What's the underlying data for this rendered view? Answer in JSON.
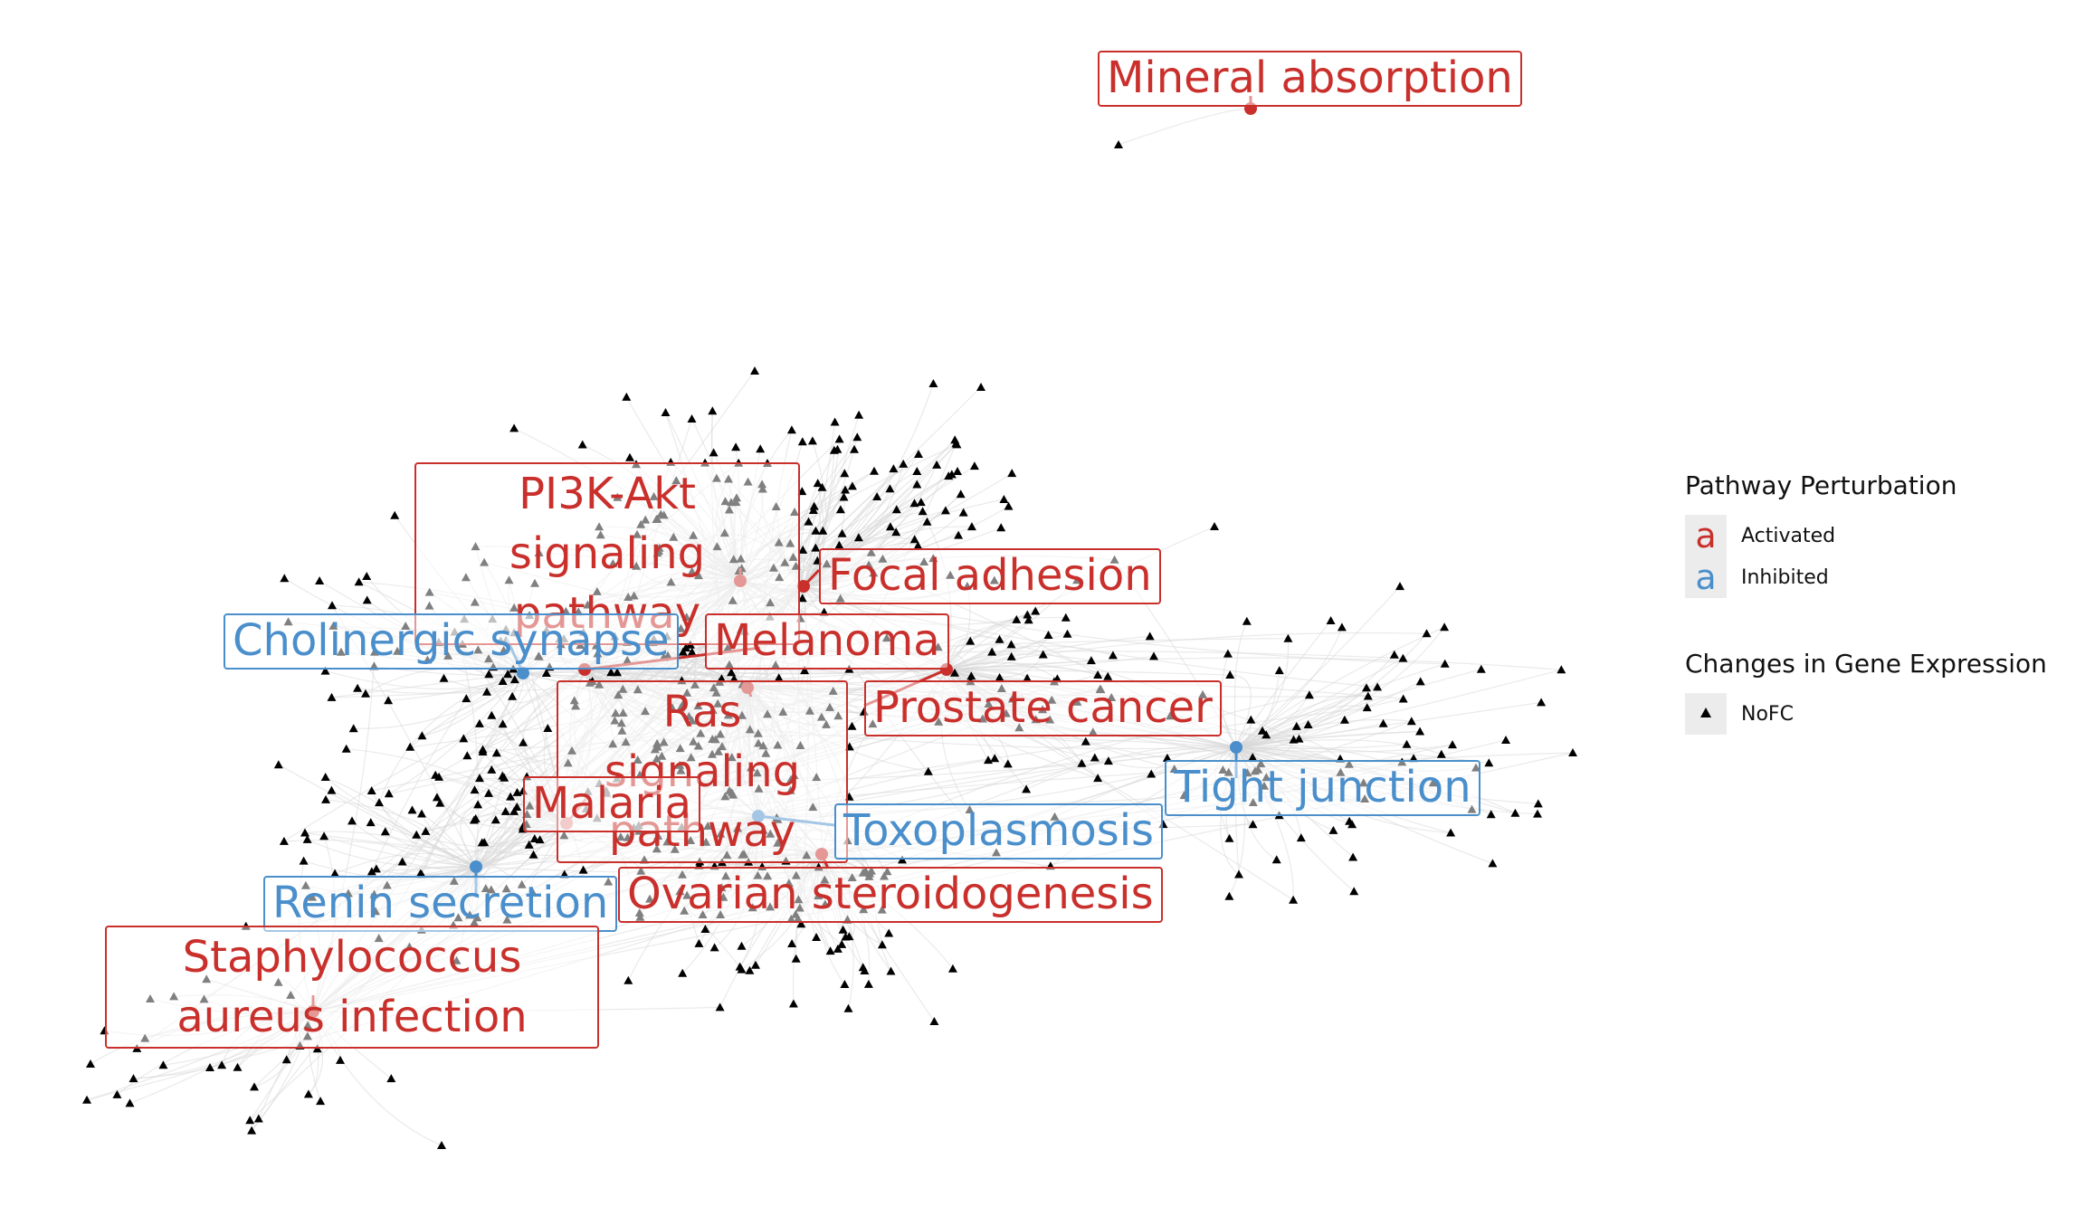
{
  "pathways": [
    {
      "label": "Mineral absorption",
      "status": "Activated"
    },
    {
      "label": "PI3K-Akt signaling pathway",
      "status": "Activated"
    },
    {
      "label": "Focal adhesion",
      "status": "Activated"
    },
    {
      "label": "Cholinergic synapse",
      "status": "Inhibited"
    },
    {
      "label": "Melanoma",
      "status": "Activated"
    },
    {
      "label": "Ras signaling pathway",
      "status": "Activated"
    },
    {
      "label": "Prostate cancer",
      "status": "Activated"
    },
    {
      "label": "Tight junction",
      "status": "Inhibited"
    },
    {
      "label": "Malaria",
      "status": "Activated"
    },
    {
      "label": "Toxoplasmosis",
      "status": "Inhibited"
    },
    {
      "label": "Renin secretion",
      "status": "Inhibited"
    },
    {
      "label": "Ovarian steroidogenesis",
      "status": "Activated"
    },
    {
      "label": "Staphylococcus aureus infection",
      "status": "Activated"
    }
  ],
  "legend": {
    "perturbation_title": "Pathway Perturbation",
    "activated_label": "Activated",
    "inhibited_label": "Inhibited",
    "key_glyph": "a",
    "expression_title": "Changes in Gene Expression",
    "nofc_label": "NoFC"
  },
  "colors": {
    "activated": "#C9302C",
    "inhibited": "#4A8FCB",
    "gene": "#000000",
    "edge": "#d9d9d9"
  },
  "gene_node_shape": "triangle"
}
